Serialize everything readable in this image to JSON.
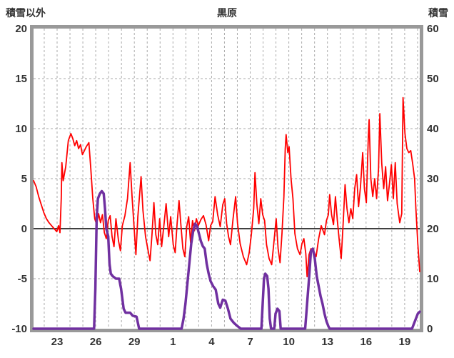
{
  "header": {
    "left_axis_title": "積雪以外",
    "station_title": "黒原",
    "right_axis_title": "積雪"
  },
  "chart_data": {
    "type": "line",
    "title": "黒原",
    "x_range": [
      0,
      30
    ],
    "zero_line": 0,
    "grid": "dashed-daily",
    "legend": "none",
    "left_axis": {
      "label": "積雪以外",
      "min": -10,
      "max": 20,
      "ticks": [
        20,
        15,
        10,
        5,
        0,
        -5,
        -10
      ]
    },
    "right_axis": {
      "label": "積雪",
      "min": 0,
      "max": 60,
      "ticks": [
        60,
        50,
        40,
        30,
        20,
        10,
        0
      ]
    },
    "x_ticks": [
      {
        "label": "23",
        "x": 1.83
      },
      {
        "label": "26",
        "x": 4.83
      },
      {
        "label": "29",
        "x": 7.83
      },
      {
        "label": "1",
        "x": 10.83
      },
      {
        "label": "4",
        "x": 13.83
      },
      {
        "label": "7",
        "x": 16.83
      },
      {
        "label": "10",
        "x": 19.83
      },
      {
        "label": "13",
        "x": 22.83
      },
      {
        "label": "16",
        "x": 25.83
      },
      {
        "label": "19",
        "x": 28.83
      }
    ],
    "day_grid_start": 0.83,
    "style": {
      "frame_color": "#999999",
      "grid_color": "#aaaaaa",
      "zero_line_color": "#404040",
      "text_color": "#333333",
      "temperature_color": "#ff0000",
      "snow_color": "#7030a0"
    },
    "series": [
      {
        "name": "積雪以外",
        "axis": "left",
        "color": "#ff0000",
        "width": 1.8,
        "points": [
          [
            0,
            4.8
          ],
          [
            0.2,
            4.2
          ],
          [
            0.4,
            3.2
          ],
          [
            0.6,
            2.4
          ],
          [
            0.8,
            1.6
          ],
          [
            1.0,
            1.0
          ],
          [
            1.2,
            0.6
          ],
          [
            1.4,
            0.3
          ],
          [
            1.6,
            0.0
          ],
          [
            1.8,
            -0.3
          ],
          [
            1.95,
            0.3
          ],
          [
            2.05,
            -0.4
          ],
          [
            2.15,
            3.0
          ],
          [
            2.2,
            6.6
          ],
          [
            2.3,
            4.8
          ],
          [
            2.5,
            6.2
          ],
          [
            2.7,
            8.8
          ],
          [
            2.9,
            9.5
          ],
          [
            3.05,
            9.0
          ],
          [
            3.2,
            8.3
          ],
          [
            3.35,
            8.8
          ],
          [
            3.5,
            8.0
          ],
          [
            3.65,
            8.4
          ],
          [
            3.8,
            7.4
          ],
          [
            3.95,
            7.8
          ],
          [
            4.1,
            8.2
          ],
          [
            4.3,
            8.6
          ],
          [
            4.45,
            6.0
          ],
          [
            4.6,
            3.0
          ],
          [
            4.75,
            1.0
          ],
          [
            4.9,
            0.4
          ],
          [
            5.05,
            1.5
          ],
          [
            5.2,
            0.6
          ],
          [
            5.35,
            1.4
          ],
          [
            5.5,
            -0.4
          ],
          [
            5.65,
            -1.0
          ],
          [
            5.8,
            0.8
          ],
          [
            5.95,
            1.3
          ],
          [
            6.1,
            -0.8
          ],
          [
            6.25,
            -1.8
          ],
          [
            6.4,
            1.0
          ],
          [
            6.6,
            -1.2
          ],
          [
            6.75,
            -2.2
          ],
          [
            6.9,
            0.3
          ],
          [
            7.1,
            1.3
          ],
          [
            7.3,
            3.0
          ],
          [
            7.5,
            6.6
          ],
          [
            7.65,
            3.2
          ],
          [
            7.8,
            0.3
          ],
          [
            7.95,
            -2.6
          ],
          [
            8.1,
            1.2
          ],
          [
            8.35,
            5.2
          ],
          [
            8.5,
            1.8
          ],
          [
            8.7,
            -0.8
          ],
          [
            8.9,
            -2.2
          ],
          [
            9.05,
            -3.2
          ],
          [
            9.2,
            -0.6
          ],
          [
            9.35,
            2.6
          ],
          [
            9.5,
            -0.6
          ],
          [
            9.65,
            -1.6
          ],
          [
            9.8,
            1.0
          ],
          [
            9.95,
            -1.8
          ],
          [
            10.15,
            0.6
          ],
          [
            10.3,
            2.5
          ],
          [
            10.5,
            -0.8
          ],
          [
            10.65,
            1.2
          ],
          [
            10.85,
            -1.6
          ],
          [
            11.0,
            -2.4
          ],
          [
            11.15,
            0.5
          ],
          [
            11.3,
            2.8
          ],
          [
            11.45,
            0.3
          ],
          [
            11.6,
            -2.0
          ],
          [
            11.75,
            -2.8
          ],
          [
            11.9,
            0.2
          ],
          [
            12.05,
            1.2
          ],
          [
            12.2,
            -1.4
          ],
          [
            12.35,
            0.8
          ],
          [
            12.5,
            -0.2
          ],
          [
            12.65,
            1.0
          ],
          [
            12.8,
            0.3
          ],
          [
            13.0,
            0.9
          ],
          [
            13.2,
            1.3
          ],
          [
            13.4,
            0.4
          ],
          [
            13.6,
            -1.2
          ],
          [
            13.75,
            0.3
          ],
          [
            13.92,
            0.7
          ],
          [
            14.1,
            3.2
          ],
          [
            14.3,
            1.4
          ],
          [
            14.5,
            0.2
          ],
          [
            14.7,
            2.4
          ],
          [
            14.85,
            3.0
          ],
          [
            15.0,
            0.5
          ],
          [
            15.15,
            -0.8
          ],
          [
            15.3,
            -1.6
          ],
          [
            15.5,
            1.0
          ],
          [
            15.7,
            3.2
          ],
          [
            15.85,
            0.5
          ],
          [
            16.05,
            -1.5
          ],
          [
            16.3,
            -2.8
          ],
          [
            16.55,
            -3.6
          ],
          [
            16.75,
            -2.4
          ],
          [
            16.92,
            -0.6
          ],
          [
            17.1,
            2.0
          ],
          [
            17.2,
            5.6
          ],
          [
            17.35,
            2.4
          ],
          [
            17.5,
            0.5
          ],
          [
            17.65,
            3.0
          ],
          [
            17.8,
            1.4
          ],
          [
            17.95,
            0.8
          ],
          [
            18.1,
            -1.6
          ],
          [
            18.3,
            -3.0
          ],
          [
            18.5,
            -3.6
          ],
          [
            18.7,
            -1.0
          ],
          [
            18.85,
            1.0
          ],
          [
            19.0,
            -2.0
          ],
          [
            19.15,
            -3.4
          ],
          [
            19.3,
            -0.5
          ],
          [
            19.45,
            3.2
          ],
          [
            19.55,
            8.0
          ],
          [
            19.62,
            9.4
          ],
          [
            19.75,
            7.6
          ],
          [
            19.85,
            8.2
          ],
          [
            20.0,
            5.0
          ],
          [
            20.15,
            3.0
          ],
          [
            20.3,
            -0.5
          ],
          [
            20.5,
            -2.0
          ],
          [
            20.7,
            -2.6
          ],
          [
            20.85,
            -1.5
          ],
          [
            21.0,
            -1.0
          ],
          [
            21.15,
            -2.5
          ],
          [
            21.25,
            -4.8
          ],
          [
            21.4,
            -2.6
          ],
          [
            21.55,
            -2.0
          ],
          [
            21.75,
            -2.2
          ],
          [
            21.95,
            -2.8
          ],
          [
            22.15,
            -1.0
          ],
          [
            22.35,
            0.3
          ],
          [
            22.6,
            -0.6
          ],
          [
            22.75,
            0.8
          ],
          [
            22.9,
            1.4
          ],
          [
            23.0,
            3.4
          ],
          [
            23.15,
            1.4
          ],
          [
            23.3,
            0.4
          ],
          [
            23.45,
            3.2
          ],
          [
            23.6,
            0.8
          ],
          [
            23.75,
            -1.2
          ],
          [
            23.9,
            -3.0
          ],
          [
            24.05,
            0.5
          ],
          [
            24.2,
            4.4
          ],
          [
            24.35,
            2.0
          ],
          [
            24.5,
            0.6
          ],
          [
            24.65,
            2.0
          ],
          [
            24.8,
            1.0
          ],
          [
            24.95,
            4.0
          ],
          [
            25.1,
            5.4
          ],
          [
            25.25,
            2.2
          ],
          [
            25.4,
            4.2
          ],
          [
            25.57,
            7.6
          ],
          [
            25.7,
            4.0
          ],
          [
            25.85,
            2.6
          ],
          [
            26.0,
            9.0
          ],
          [
            26.07,
            10.9
          ],
          [
            26.2,
            5.0
          ],
          [
            26.35,
            3.2
          ],
          [
            26.5,
            5.0
          ],
          [
            26.65,
            3.0
          ],
          [
            26.8,
            6.0
          ],
          [
            26.9,
            11.5
          ],
          [
            27.05,
            6.5
          ],
          [
            27.2,
            4.0
          ],
          [
            27.35,
            6.2
          ],
          [
            27.5,
            2.8
          ],
          [
            27.65,
            4.5
          ],
          [
            27.8,
            6.4
          ],
          [
            27.95,
            3.0
          ],
          [
            28.1,
            6.6
          ],
          [
            28.25,
            2.5
          ],
          [
            28.45,
            0.6
          ],
          [
            28.6,
            1.5
          ],
          [
            28.7,
            13.1
          ],
          [
            28.85,
            9.5
          ],
          [
            29.0,
            8.0
          ],
          [
            29.15,
            7.6
          ],
          [
            29.3,
            7.8
          ],
          [
            29.45,
            6.5
          ],
          [
            29.6,
            5.0
          ],
          [
            29.7,
            2.0
          ],
          [
            29.85,
            -1.5
          ],
          [
            30.0,
            -4.3
          ]
        ]
      },
      {
        "name": "積雪",
        "axis": "right",
        "color": "#7030a0",
        "width": 3.5,
        "points": [
          [
            0,
            0
          ],
          [
            4.7,
            0
          ],
          [
            4.8,
            8
          ],
          [
            4.9,
            22
          ],
          [
            5.0,
            26
          ],
          [
            5.15,
            27
          ],
          [
            5.3,
            27.5
          ],
          [
            5.45,
            27
          ],
          [
            5.55,
            24
          ],
          [
            5.65,
            20
          ],
          [
            5.8,
            18.5
          ],
          [
            5.9,
            13
          ],
          [
            6.0,
            11
          ],
          [
            6.15,
            10.5
          ],
          [
            6.4,
            10
          ],
          [
            6.65,
            10
          ],
          [
            6.8,
            8
          ],
          [
            6.9,
            6
          ],
          [
            7.0,
            4
          ],
          [
            7.15,
            3.2
          ],
          [
            7.5,
            3.2
          ],
          [
            7.7,
            2.6
          ],
          [
            8.0,
            2.4
          ],
          [
            8.1,
            1.2
          ],
          [
            8.2,
            0
          ],
          [
            11.5,
            0
          ],
          [
            11.65,
            2
          ],
          [
            11.8,
            5
          ],
          [
            11.95,
            9
          ],
          [
            12.1,
            13
          ],
          [
            12.25,
            17
          ],
          [
            12.4,
            19.5
          ],
          [
            12.55,
            21
          ],
          [
            12.7,
            20.5
          ],
          [
            12.85,
            19
          ],
          [
            13.0,
            17.5
          ],
          [
            13.15,
            16.5
          ],
          [
            13.3,
            16
          ],
          [
            13.45,
            13
          ],
          [
            13.6,
            11
          ],
          [
            13.75,
            9.5
          ],
          [
            13.95,
            8.5
          ],
          [
            14.15,
            7.8
          ],
          [
            14.35,
            5
          ],
          [
            14.5,
            4.2
          ],
          [
            14.7,
            5.8
          ],
          [
            14.9,
            5.6
          ],
          [
            15.1,
            4
          ],
          [
            15.3,
            2
          ],
          [
            15.55,
            1.2
          ],
          [
            15.8,
            0.6
          ],
          [
            16.1,
            0
          ],
          [
            17.7,
            0
          ],
          [
            17.8,
            5
          ],
          [
            17.9,
            10
          ],
          [
            18.0,
            11
          ],
          [
            18.15,
            10.5
          ],
          [
            18.25,
            8
          ],
          [
            18.35,
            2
          ],
          [
            18.45,
            0
          ],
          [
            18.7,
            0
          ],
          [
            18.8,
            3
          ],
          [
            18.95,
            4
          ],
          [
            19.1,
            3.5
          ],
          [
            19.2,
            0
          ],
          [
            21.1,
            0
          ],
          [
            21.25,
            5
          ],
          [
            21.4,
            10
          ],
          [
            21.55,
            15.5
          ],
          [
            21.7,
            16
          ],
          [
            21.85,
            14
          ],
          [
            22.0,
            10.5
          ],
          [
            22.15,
            8.5
          ],
          [
            22.3,
            6.5
          ],
          [
            22.45,
            5
          ],
          [
            22.6,
            3
          ],
          [
            22.75,
            1.5
          ],
          [
            22.9,
            0.5
          ],
          [
            23.0,
            0
          ],
          [
            29.4,
            0
          ],
          [
            29.55,
            1
          ],
          [
            29.7,
            2
          ],
          [
            29.85,
            3
          ],
          [
            30.0,
            3.4
          ]
        ]
      }
    ]
  }
}
